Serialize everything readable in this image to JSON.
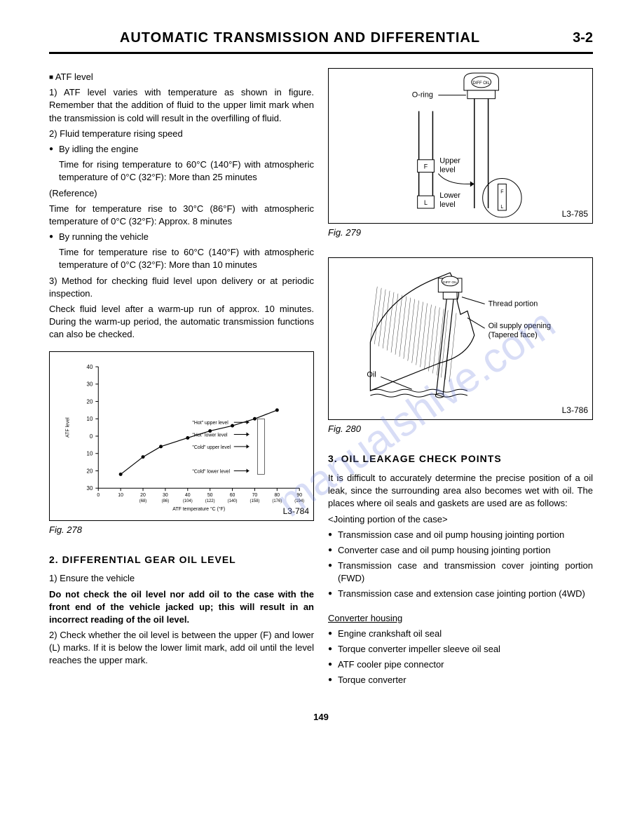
{
  "header": {
    "title": "AUTOMATIC TRANSMISSION AND DIFFERENTIAL",
    "page_ref": "3-2"
  },
  "footer": {
    "page": "149"
  },
  "left": {
    "atf_heading": "ATF level",
    "p1": "1)  ATF level varies with temperature as shown in figure. Remember that the addition of fluid to the upper limit mark when the transmission is cold will result in the overfilling of fluid.",
    "p2": "2)  Fluid temperature rising speed",
    "b1": "By idling the engine",
    "b1_text": "Time for rising temperature to 60°C (140°F) with atmospheric temperature of 0°C (32°F): More than 25 minutes",
    "ref": "(Reference)",
    "ref_text": "Time for temperature rise to 30°C (86°F) with atmospheric temperature of 0°C (32°F): Approx. 8 minutes",
    "b2": "By running the vehicle",
    "b2_text": "Time for temperature rise to 60°C (140°F) with atmospheric temperature of 0°C (32°F): More than 10 minutes",
    "p3": "3)  Method for checking fluid level upon delivery or at periodic inspection.",
    "p4": "Check fluid level after a warm-up run of approx. 10 minutes. During the warm-up period, the automatic transmission functions can also be checked.",
    "fig278": {
      "caption": "Fig. 278",
      "code": "L3-784",
      "ylabel": "ATF level",
      "xlabel": "ATF temperature °C (°F)",
      "y_ticks": [
        "40",
        "30",
        "20",
        "10",
        "0",
        "10",
        "20",
        "30"
      ],
      "x_ticks": [
        "0",
        "10",
        "20",
        "30",
        "40",
        "50",
        "60",
        "70",
        "80",
        "90"
      ],
      "x_sub": [
        "",
        "",
        "(68)",
        "(86)",
        "(104)",
        "(122)",
        "(140)",
        "(158)",
        "(176)",
        "(194)"
      ],
      "annot": [
        "\"Hot\" upper level",
        "\"Hot\" lower level",
        "\"Cold\" upper level",
        "\"Cold\" lower level"
      ],
      "series": [
        {
          "x": 10,
          "y": -22
        },
        {
          "x": 20,
          "y": -12
        },
        {
          "x": 28,
          "y": -6
        },
        {
          "x": 40,
          "y": -1
        },
        {
          "x": 50,
          "y": 3
        },
        {
          "x": 60,
          "y": 6
        },
        {
          "x": 70,
          "y": 10
        },
        {
          "x": 80,
          "y": 15
        }
      ],
      "line_color": "#000"
    },
    "sec2_title": "2. DIFFERENTIAL GEAR OIL LEVEL",
    "sec2_1": "1)   Ensure the vehicle",
    "sec2_warn": "Do not check the oil level nor add oil to the case with the front end of the vehicle jacked up; this will result in an incorrect reading of the oil level.",
    "sec2_2": "2)   Check whether the oil level is between the upper (F) and lower (L) marks. If it is below the lower limit mark, add oil until the level reaches the upper mark."
  },
  "right": {
    "fig279": {
      "caption": "Fig. 279",
      "code": "L3-785",
      "labels": {
        "oring": "O-ring",
        "upper": "Upper level",
        "lower": "Lower level",
        "cap": "DIFF OIL"
      }
    },
    "fig280": {
      "caption": "Fig. 280",
      "code": "L3-786",
      "labels": {
        "thread": "Thread portion",
        "opening": "Oil supply opening",
        "taper": "(Tapered face)",
        "oil": "Oil",
        "cap": "DIFF OIL"
      }
    },
    "sec3_title": "3. OIL LEAKAGE CHECK POINTS",
    "sec3_intro": "It is difficult to accurately determine the precise position of a oil leak, since the surrounding area also becomes wet with oil. The places where oil seals and gaskets are used are as follows:",
    "joint_head": "<Jointing portion of the case>",
    "joint_items": [
      "Transmission case and oil pump housing jointing portion",
      "Converter case and oil pump housing jointing portion",
      "Transmission case and transmission cover jointing portion (FWD)",
      "Transmission case and extension case jointing portion (4WD)"
    ],
    "conv_head": "Converter housing",
    "conv_items": [
      "Engine crankshaft oil seal",
      "Torque converter impeller sleeve oil seal",
      "ATF cooler pipe connector",
      "Torque converter"
    ]
  }
}
